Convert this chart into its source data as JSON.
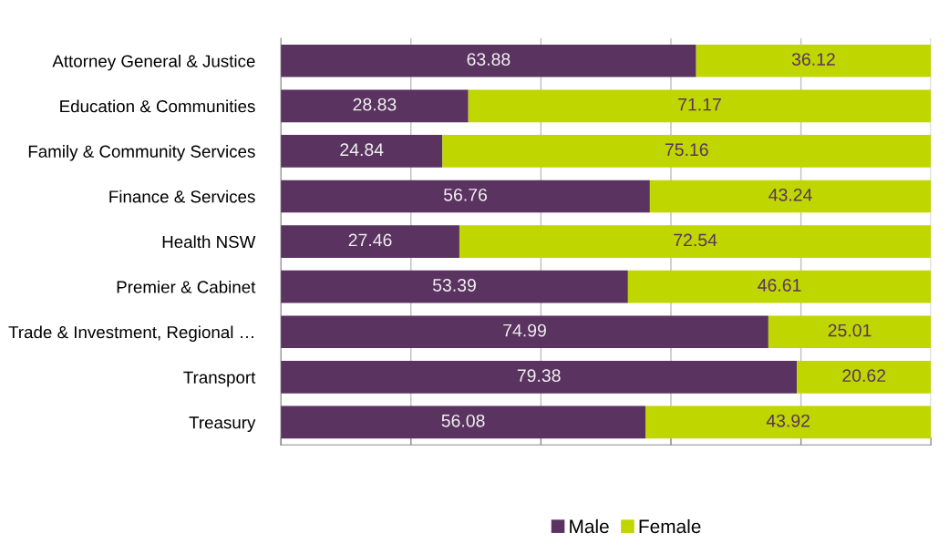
{
  "chart_data": {
    "type": "bar",
    "orientation": "horizontal",
    "stacked": true,
    "categories": [
      "Attorney General & Justice",
      "Education & Communities",
      "Family & Community Services",
      "Finance & Services",
      "Health NSW",
      "Premier & Cabinet",
      "Trade & Investment, Regional …",
      "Transport",
      "Treasury"
    ],
    "series": [
      {
        "name": "Male",
        "color": "#5a3360",
        "values": [
          63.88,
          28.83,
          24.84,
          56.76,
          27.46,
          53.39,
          74.99,
          79.38,
          56.08
        ]
      },
      {
        "name": "Female",
        "color": "#bfd600",
        "values": [
          36.12,
          71.17,
          75.16,
          43.24,
          72.54,
          46.61,
          25.01,
          20.62,
          43.92
        ]
      }
    ],
    "xlim": [
      0,
      100
    ],
    "xticks": [
      {
        "value": 0,
        "label": null
      },
      {
        "value": 20,
        "label": null
      },
      {
        "value": 40,
        "label": null
      },
      {
        "value": 60,
        "label": null
      },
      {
        "value": 80,
        "label": null
      },
      {
        "value": 100,
        "label": null
      }
    ],
    "tick_labels": "y",
    "grid": "x",
    "legend": "bottom",
    "data_labels": true
  }
}
